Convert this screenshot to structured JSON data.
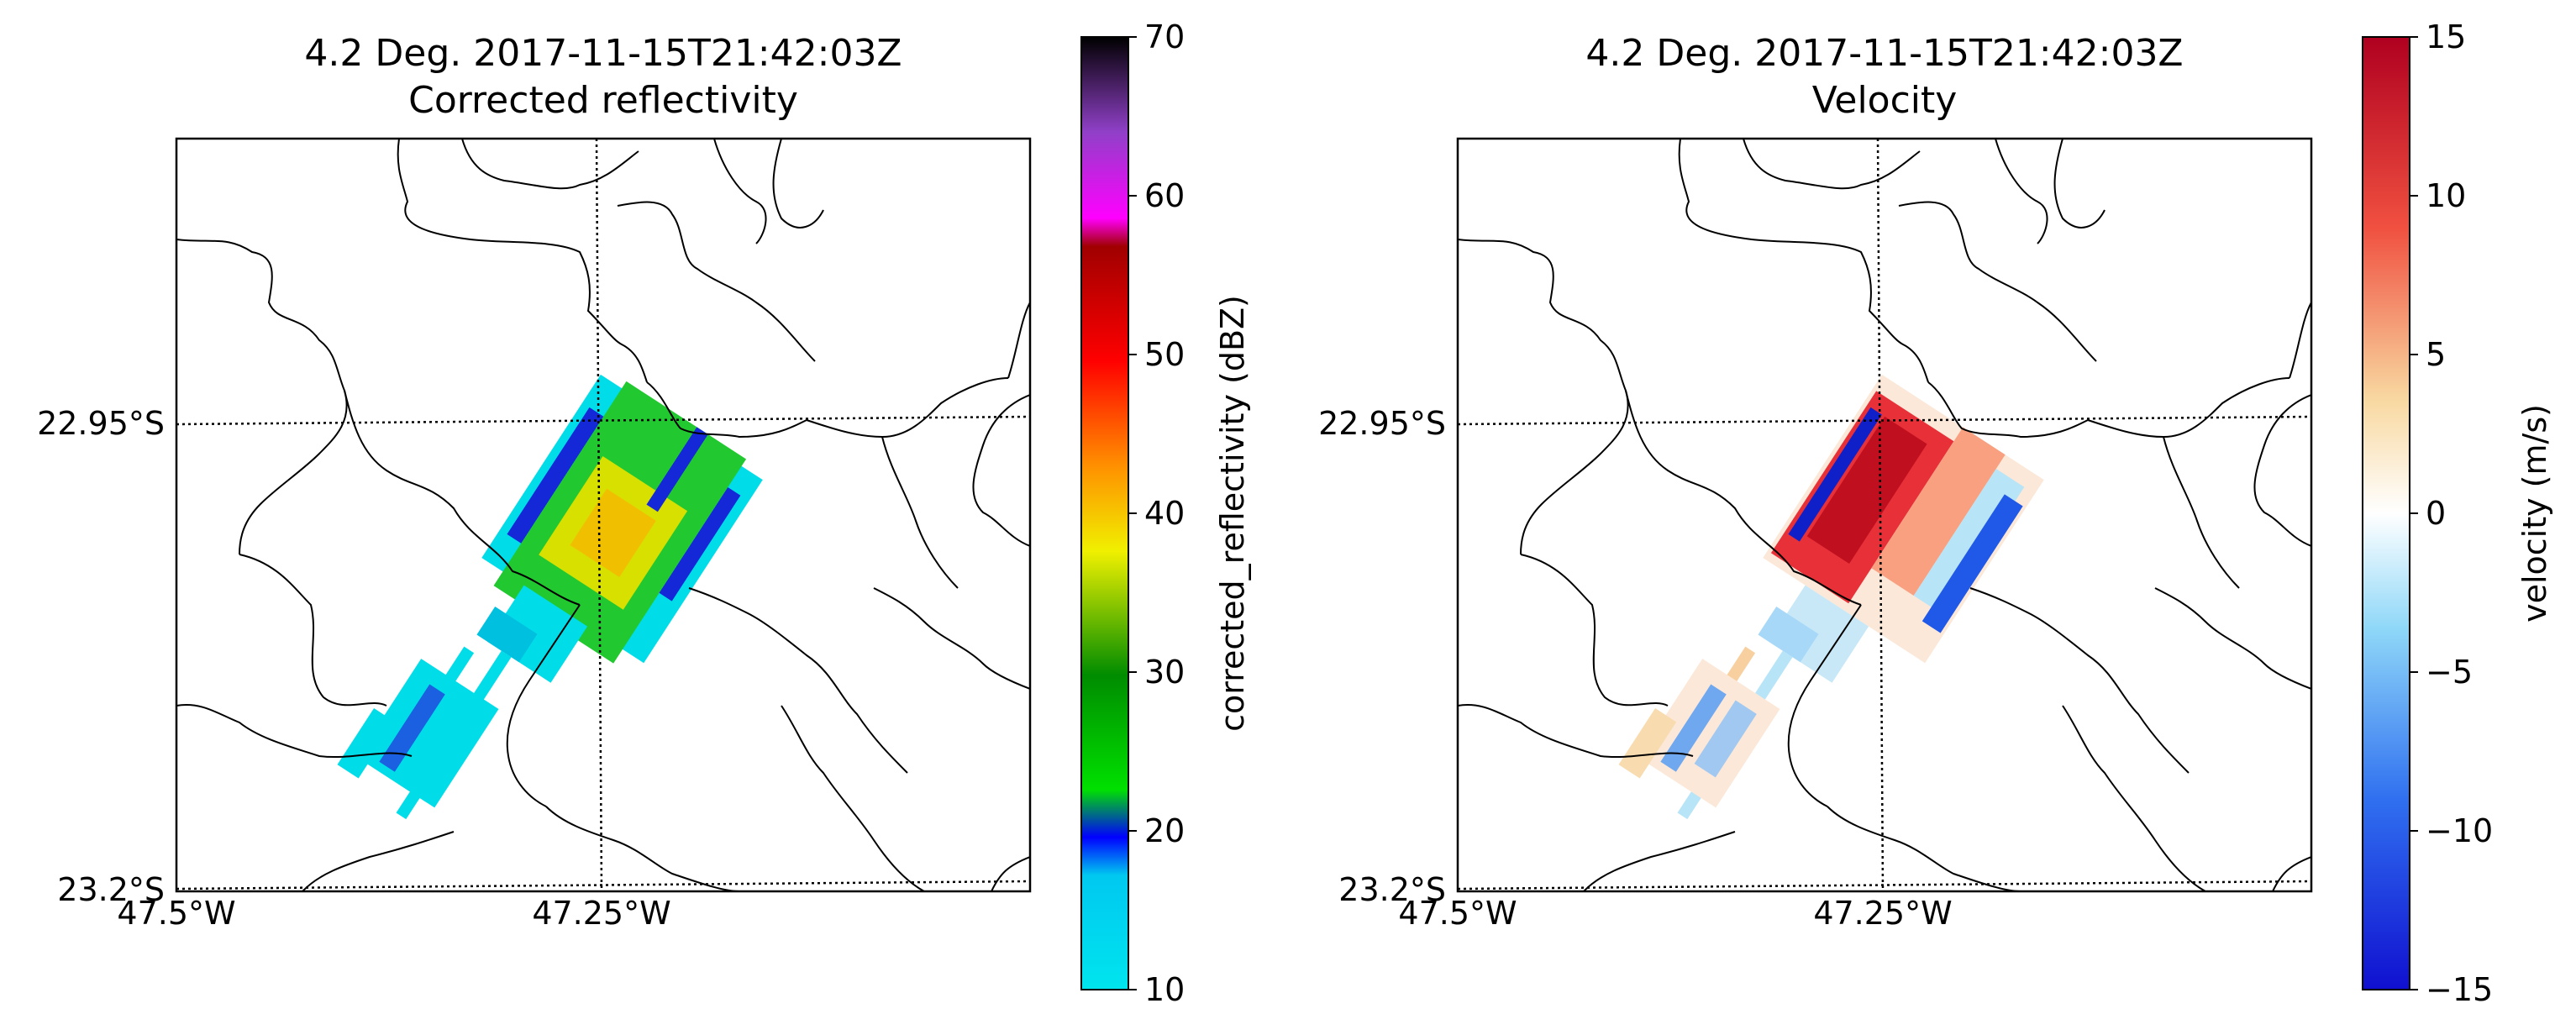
{
  "figure": {
    "panels": [
      {
        "title_line1": "4.2 Deg. 2017-11-15T21:42:03Z",
        "title_line2": "Corrected reflectivity",
        "lat_labels": [
          "22.95°S",
          "23.2°S"
        ],
        "lon_labels": [
          "47.5°W",
          "47.25°W"
        ],
        "colorbar": {
          "label": "corrected_reflectivity (dBZ)",
          "ticks": [
            "10",
            "20",
            "30",
            "40",
            "50",
            "60",
            "70"
          ],
          "range": [
            10,
            70
          ],
          "colormap": "NWSRef-like rainbow",
          "colors": [
            "#00e5ee",
            "#0000ff",
            "#00e000",
            "#ffff00",
            "#ff8c00",
            "#ff0000",
            "#b00000",
            "#ff00ff",
            "#8040c0",
            "#000000"
          ]
        }
      },
      {
        "title_line1": "4.2 Deg. 2017-11-15T21:42:03Z",
        "title_line2": "Velocity",
        "lat_labels": [
          "22.95°S",
          "23.2°S"
        ],
        "lon_labels": [
          "47.5°W",
          "47.25°W"
        ],
        "colorbar": {
          "label": "velocity (m/s)",
          "ticks": [
            "15",
            "10",
            "5",
            "0",
            "−5",
            "−10",
            "−15"
          ],
          "range": [
            -15,
            15
          ],
          "colormap": "blue-white-red diverging",
          "colors": [
            "#1010d0",
            "#4080f0",
            "#90d8f8",
            "#ffffff",
            "#f8d8a0",
            "#f06040",
            "#b00020"
          ]
        }
      }
    ]
  }
}
